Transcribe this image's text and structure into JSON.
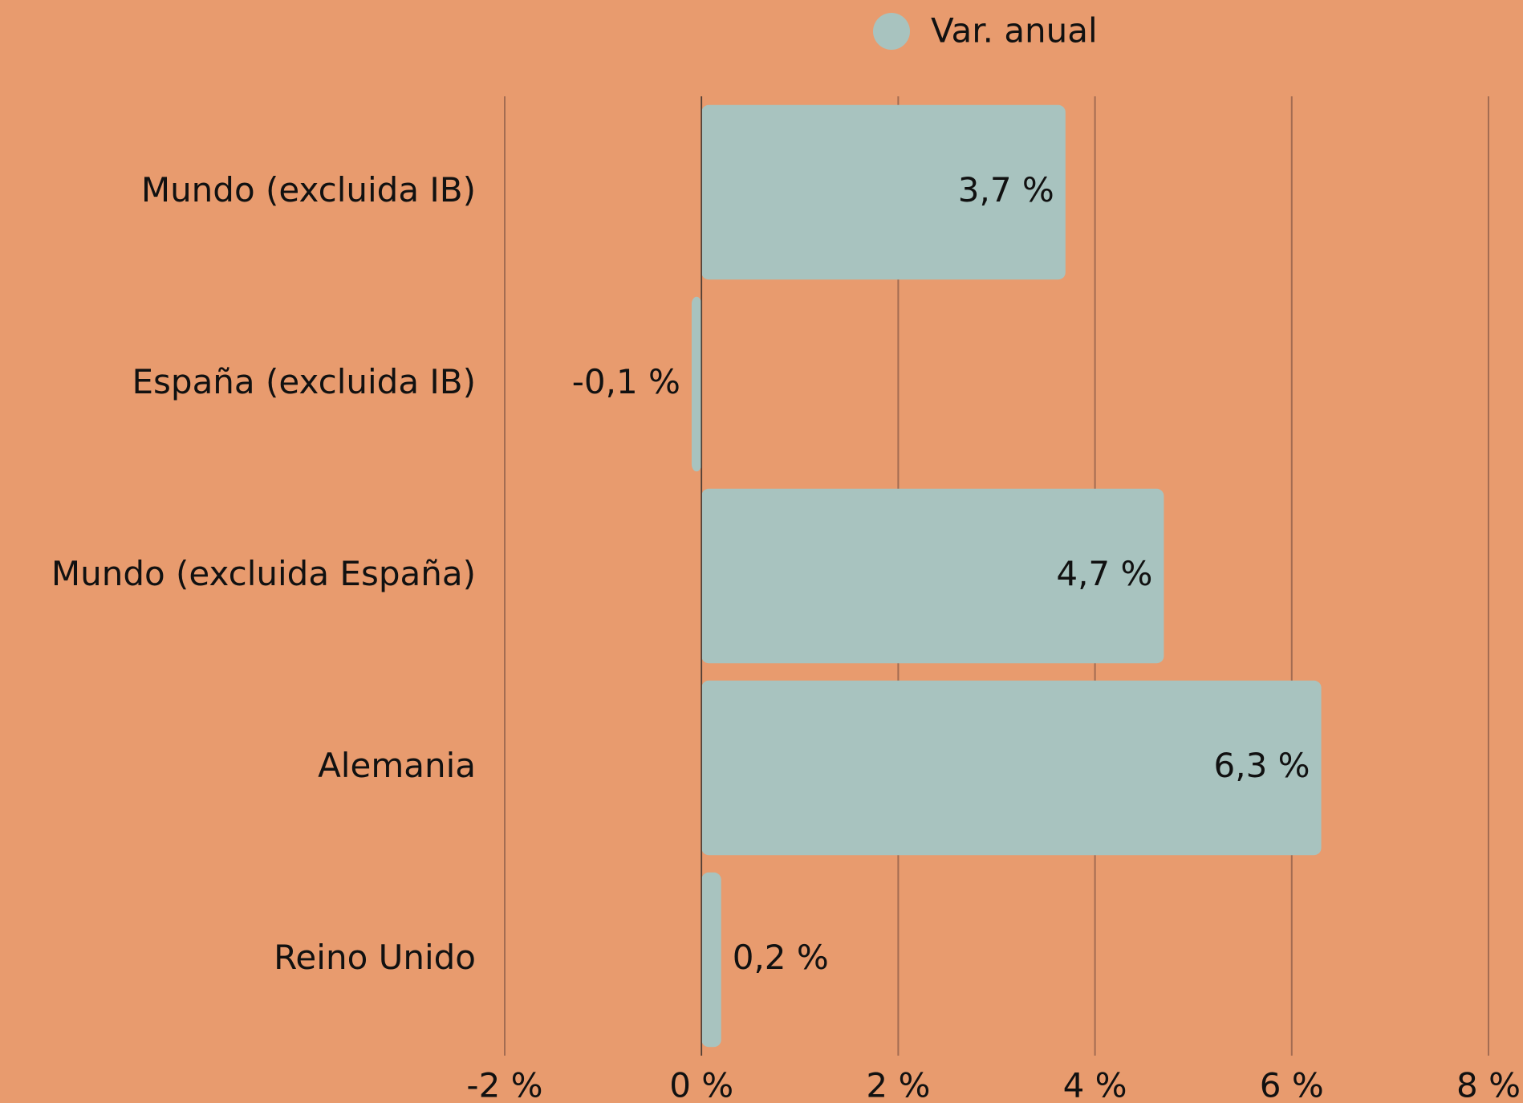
{
  "chart_data": {
    "type": "barh",
    "categories": [
      "Mundo (excluida IB)",
      "España (excluida IB)",
      "Mundo (excluida España)",
      "Alemania",
      "Reino Unido"
    ],
    "series": [
      {
        "name": "Var. anual",
        "color": "#a8c3bf",
        "values": [
          3.7,
          -0.1,
          4.7,
          6.3,
          0.2
        ],
        "value_labels": [
          "3,7 %",
          "-0,1 %",
          "4,7 %",
          "6,3 %",
          "0,2 %"
        ]
      }
    ],
    "xlim": [
      -2,
      8
    ],
    "xticks": [
      {
        "value": -2,
        "label": "-2 %"
      },
      {
        "value": 0,
        "label": "0 %"
      },
      {
        "value": 2,
        "label": "2 %"
      },
      {
        "value": 4,
        "label": "4 %"
      },
      {
        "value": 6,
        "label": "6 %"
      },
      {
        "value": 8,
        "label": "8 %"
      }
    ],
    "grid": true,
    "legend": "top"
  }
}
